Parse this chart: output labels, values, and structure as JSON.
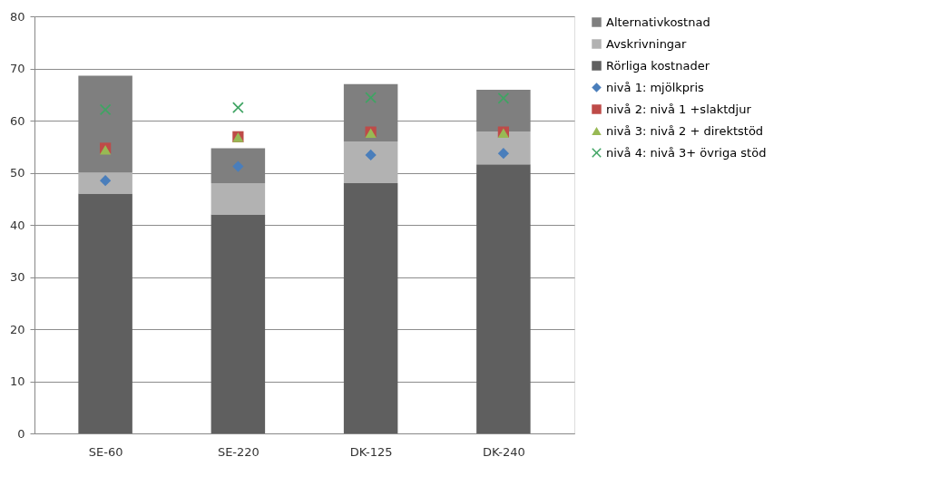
{
  "chart_data": {
    "type": "bar",
    "stacked": true,
    "categories": [
      "SE-60",
      "SE-220",
      "DK-125",
      "DK-240"
    ],
    "series": [
      {
        "name": "Rörliga kostnader",
        "color": "#5f5f5f",
        "values": [
          46,
          42,
          48,
          51.6
        ]
      },
      {
        "name": "Avskrivningar",
        "color": "#b2b2b2",
        "values": [
          4,
          6,
          8,
          6.3
        ]
      },
      {
        "name": "Alternativkostnad",
        "color": "#7f7f7f",
        "values": [
          18.6,
          6.7,
          11,
          8
        ]
      },
      {
        "name": "nivå 1: mjölkpris",
        "type": "scatter",
        "marker": "diamond",
        "color": "#4a7ebb",
        "values": [
          48.5,
          51.2,
          53.4,
          53.7
        ]
      },
      {
        "name": "nivå 2: nivå 1 +slaktdjur",
        "type": "scatter",
        "marker": "square",
        "color": "#be4b48",
        "values": [
          54.7,
          56.9,
          57.8,
          57.8
        ]
      },
      {
        "name": "nivå 3: nivå 2 + direktstöd",
        "type": "scatter",
        "marker": "triangle",
        "color": "#98b954",
        "values": [
          54.4,
          56.8,
          57.6,
          57.6
        ]
      },
      {
        "name": "nivå 4: nivå 3+ övriga stöd",
        "type": "scatter",
        "marker": "cross",
        "color": "#3fa463",
        "values": [
          62.1,
          62.5,
          64.4,
          64.3
        ]
      }
    ],
    "ylim": [
      0,
      80
    ],
    "yticks": [
      0,
      10,
      20,
      30,
      40,
      50,
      60,
      70,
      80
    ],
    "grid": "y",
    "legend": "right"
  }
}
